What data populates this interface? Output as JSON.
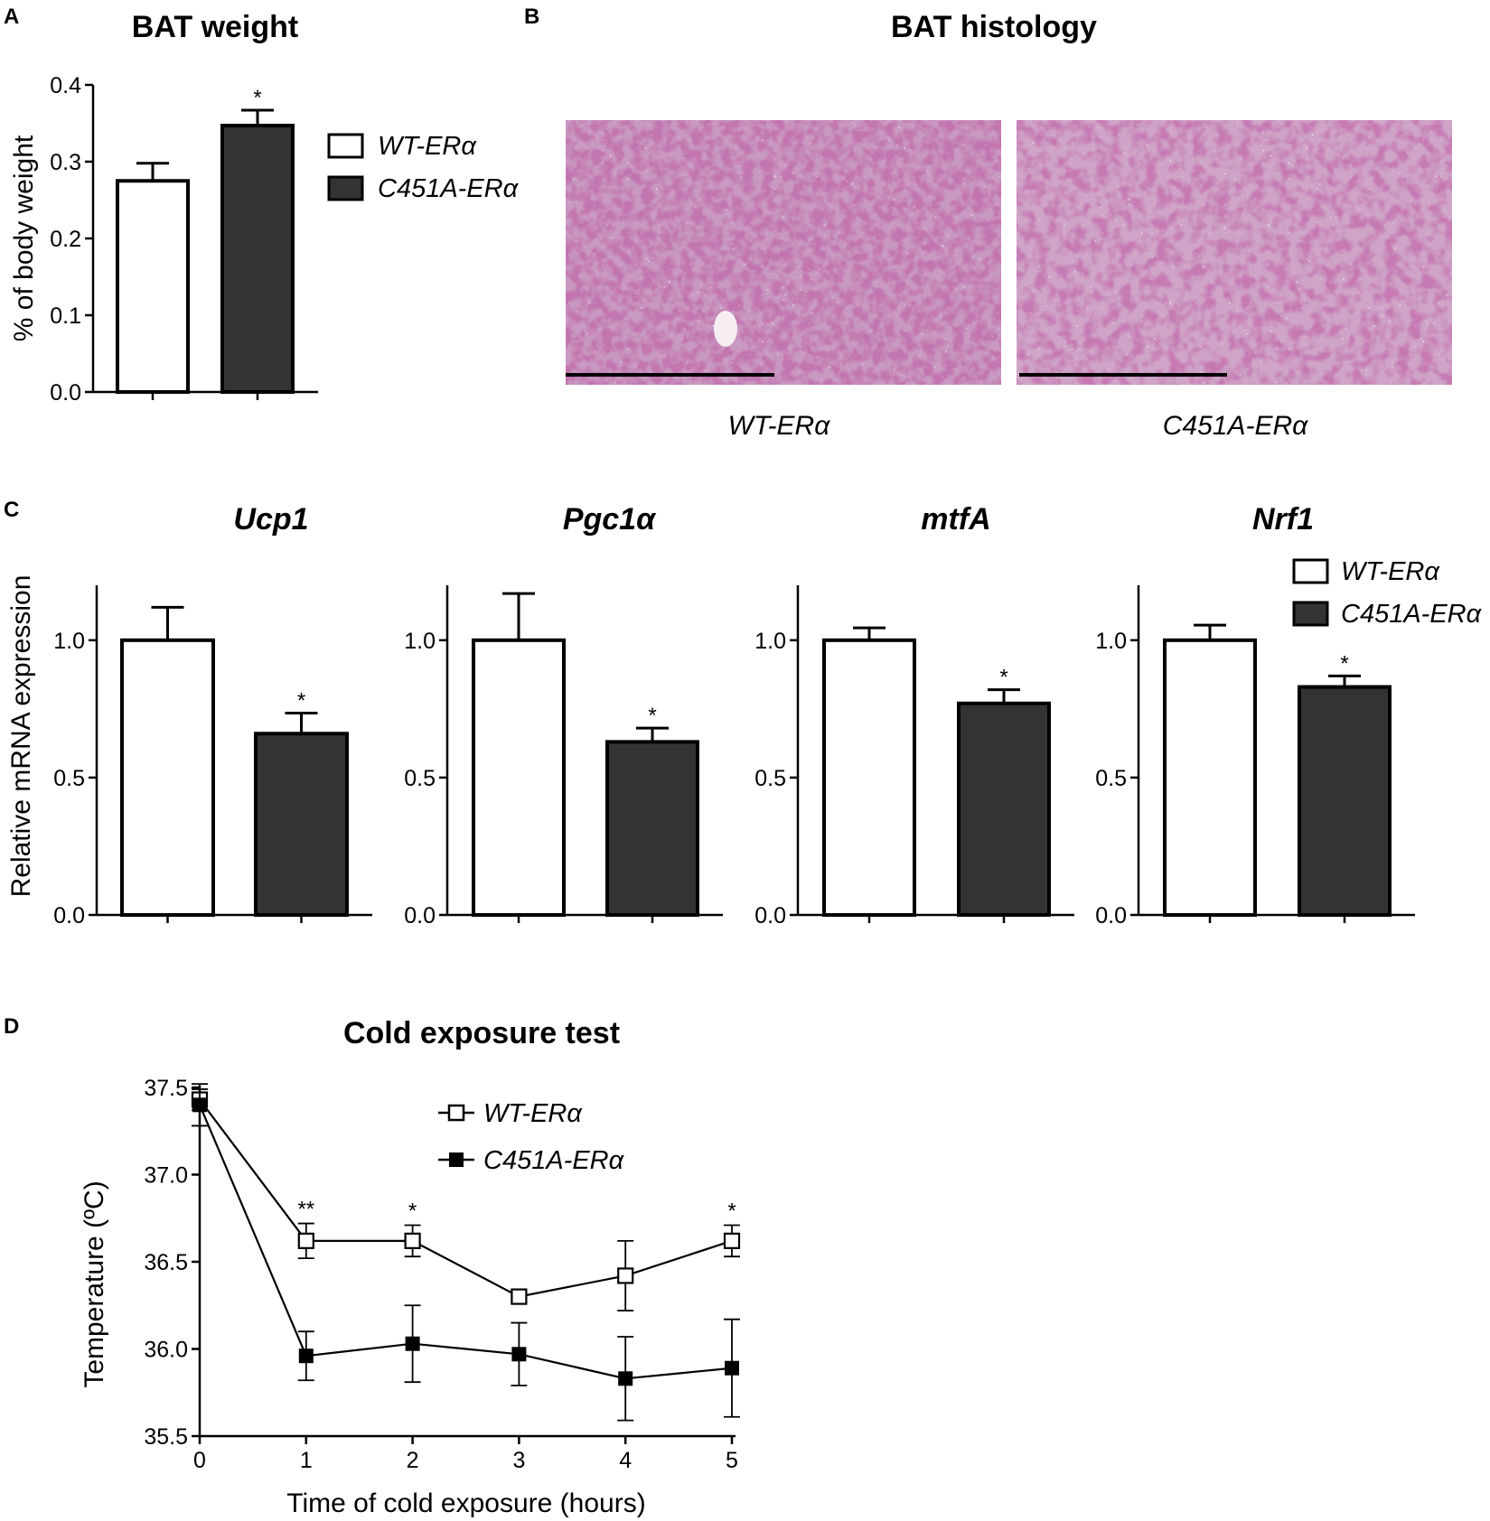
{
  "panels": {
    "A": "A",
    "B": "B",
    "C": "C",
    "D": "D"
  },
  "colors": {
    "wt_fill": "#ffffff",
    "c451a_fill": "#333333",
    "stroke": "#000000",
    "stain_base": "#c9559a",
    "stain_light": "#f4e6ef",
    "stain_dark": "#6e1f5b"
  },
  "histology": {
    "title": "BAT histology",
    "images": [
      {
        "label": "WT-ERα",
        "description_icon": "he-stain-micrograph"
      },
      {
        "label": "C451A-ERα",
        "description_icon": "he-stain-micrograph"
      }
    ]
  },
  "legend_bar": [
    {
      "label": "WT-ERα",
      "swatch": "white"
    },
    {
      "label": "C451A-ERα",
      "swatch": "dark"
    }
  ],
  "legend_line": [
    {
      "label": "WT-ERα",
      "marker": "open-square"
    },
    {
      "label": "C451A-ERα",
      "marker": "filled-square"
    }
  ],
  "chart_data": [
    {
      "id": "A",
      "type": "bar",
      "title": "BAT weight",
      "ylabel": "% of body weight",
      "ylim": [
        0,
        0.4
      ],
      "yticks": [
        "0.0",
        "0.1",
        "0.2",
        "0.3",
        "0.4"
      ],
      "categories": [
        "WT-ERα",
        "C451A-ERα"
      ],
      "values": [
        0.275,
        0.347
      ],
      "errors": [
        0.023,
        0.02
      ],
      "significance": [
        "",
        "*"
      ]
    },
    {
      "id": "C1",
      "type": "bar",
      "title": "Ucp1",
      "ylabel": "Relative mRNA expression",
      "ylim": [
        0,
        1.2
      ],
      "yticks": [
        "0.0",
        "0.5",
        "1.0"
      ],
      "categories": [
        "WT-ERα",
        "C451A-ERα"
      ],
      "values": [
        1.0,
        0.66
      ],
      "errors": [
        0.12,
        0.075
      ],
      "significance": [
        "",
        "*"
      ]
    },
    {
      "id": "C2",
      "type": "bar",
      "title": "Pgc1α",
      "ylim": [
        0,
        1.2
      ],
      "yticks": [
        "0.0",
        "0.5",
        "1.0"
      ],
      "categories": [
        "WT-ERα",
        "C451A-ERα"
      ],
      "values": [
        1.0,
        0.63
      ],
      "errors": [
        0.17,
        0.05
      ],
      "significance": [
        "",
        "*"
      ]
    },
    {
      "id": "C3",
      "type": "bar",
      "title": "mtfA",
      "ylim": [
        0,
        1.2
      ],
      "yticks": [
        "0.0",
        "0.5",
        "1.0"
      ],
      "categories": [
        "WT-ERα",
        "C451A-ERα"
      ],
      "values": [
        1.0,
        0.77
      ],
      "errors": [
        0.045,
        0.05
      ],
      "significance": [
        "",
        "*"
      ]
    },
    {
      "id": "C4",
      "type": "bar",
      "title": "Nrf1",
      "ylim": [
        0,
        1.2
      ],
      "yticks": [
        "0.0",
        "0.5",
        "1.0"
      ],
      "categories": [
        "WT-ERα",
        "C451A-ERα"
      ],
      "values": [
        1.0,
        0.83
      ],
      "errors": [
        0.055,
        0.04
      ],
      "significance": [
        "",
        "*"
      ]
    },
    {
      "id": "D",
      "type": "line",
      "title": "Cold exposure test",
      "xlabel": "Time of cold exposure (hours)",
      "ylabel": "Temperature (ºC)",
      "x": [
        0,
        1,
        2,
        3,
        4,
        5
      ],
      "xticks": [
        "0",
        "1",
        "2",
        "3",
        "4",
        "5"
      ],
      "ylim": [
        35.5,
        37.5
      ],
      "yticks": [
        "35.5",
        "36.0",
        "36.5",
        "37.0",
        "37.5"
      ],
      "series": [
        {
          "name": "WT-ERα",
          "marker": "open-square",
          "values": [
            37.43,
            36.62,
            36.62,
            36.3,
            36.42,
            36.62
          ],
          "errors": [
            0.06,
            0.1,
            0.09,
            0.02,
            0.2,
            0.09
          ]
        },
        {
          "name": "C451A-ERα",
          "marker": "filled-square",
          "values": [
            37.4,
            35.96,
            36.03,
            35.97,
            35.83,
            35.89
          ],
          "errors": [
            0.12,
            0.14,
            0.22,
            0.18,
            0.24,
            0.28
          ]
        }
      ],
      "significance": [
        "",
        "**",
        "*",
        "",
        "",
        "*"
      ]
    }
  ]
}
